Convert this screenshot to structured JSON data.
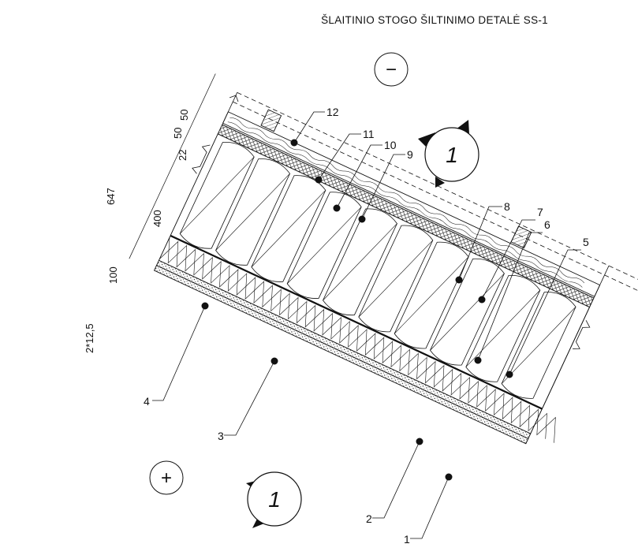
{
  "title": "ŠLAITINIO STOGO ŠILTINIMO DETALĖ SS-1",
  "zones": {
    "outer": "−",
    "inner": "+"
  },
  "section_marker": "1",
  "dimensions": [
    "647",
    "50",
    "50",
    "22",
    "400",
    "100",
    "2*12,5"
  ],
  "callouts": [
    "1",
    "2",
    "3",
    "4",
    "5",
    "6",
    "7",
    "8",
    "9",
    "10",
    "11",
    "12"
  ],
  "colors": {
    "line": "#111111",
    "paper": "#ffffff"
  }
}
